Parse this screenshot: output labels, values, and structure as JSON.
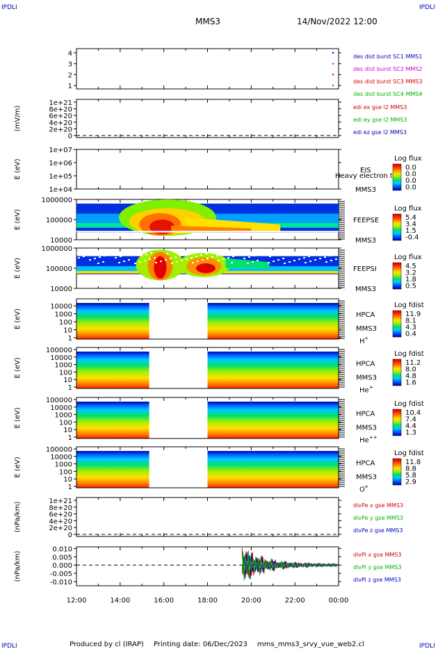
{
  "header": {
    "corner_label": "IPDLI",
    "spacecraft": "MMS3",
    "datetime": "14/Nov/2022 12:00"
  },
  "footer": {
    "produced_by": "Produced by cl (IRAP)",
    "printing_date": "Printing date: 06/Dec/2023",
    "script_name": "mms_mms3_srvy_vue_web2.cl"
  },
  "colors": {
    "blue": "#0000c0",
    "magenta": "#d000d0",
    "red": "#d00000",
    "green": "#00b000",
    "spectro_palette": [
      "#0000a0",
      "#0050ff",
      "#00c8ff",
      "#00e070",
      "#a0f000",
      "#ffe000",
      "#ff8000",
      "#ff2000",
      "#d80000"
    ]
  },
  "chart_data": [
    {
      "type": "scatter",
      "panel": "burst",
      "yticks": [
        "4",
        "3",
        "2",
        "1"
      ],
      "legend": [
        "des dist burst SC1 MMS1",
        "des dist burst SC2 MMS2",
        "des dist burst SC3 MMS3",
        "des dist burst SC4 MMS4"
      ],
      "legend_colors": [
        "blue",
        "magenta",
        "red",
        "green"
      ],
      "points": [
        {
          "x": "23:45",
          "y": 4
        },
        {
          "x": "23:45",
          "y": 3
        },
        {
          "x": "23:45",
          "y": 2
        },
        {
          "x": "23:45",
          "y": 1
        }
      ]
    },
    {
      "type": "line",
      "panel": "edi",
      "ylabel": "(mV/m)",
      "yticks": [
        "1e+21",
        "8e+20",
        "6e+20",
        "4e+20",
        "2e+20",
        "0"
      ],
      "legend": [
        "edi ex gse l2 MMS3",
        "edi ey gse l2 MMS3",
        "edi ez gse l2 MMS3"
      ],
      "legend_colors": [
        "red",
        "green",
        "blue"
      ]
    },
    {
      "type": "heatmap",
      "panel": "eis",
      "ylabel": "E (eV)",
      "yticks": [
        "1e+07",
        "1e+06",
        "1e+05",
        "1e+04"
      ],
      "instrument": [
        "EIS",
        "MMS3"
      ],
      "overlay_text": "Heavy electron to",
      "colorbar_title": "Log flux",
      "colorbar_ticks": [
        "0.0",
        "0.0",
        "0.0",
        "0.0"
      ]
    },
    {
      "type": "heatmap",
      "panel": "feepse",
      "ylabel": "E (eV)",
      "yticks": [
        "1000000",
        "100000",
        "10000"
      ],
      "instrument": [
        "FEEPSE",
        "MMS3"
      ],
      "colorbar_title": "Log flux",
      "colorbar_ticks": [
        "5.4",
        "3.4",
        "1.5",
        "-0.4"
      ]
    },
    {
      "type": "heatmap",
      "panel": "feepsi",
      "ylabel": "E (eV)",
      "yticks": [
        "1000000",
        "100000",
        "10000"
      ],
      "instrument": [
        "FEEPSI",
        "MMS3"
      ],
      "colorbar_title": "Log flux",
      "colorbar_ticks": [
        "4.5",
        "3.2",
        "1.8",
        "0.5"
      ]
    },
    {
      "type": "heatmap",
      "panel": "hpca_h",
      "ylabel": "E (eV)",
      "yticks": [
        "10000",
        "1000",
        "100",
        "10",
        "1"
      ],
      "instrument": [
        "HPCA",
        "MMS3"
      ],
      "species": "H",
      "species_charge": "+",
      "colorbar_title": "Log fdist",
      "colorbar_ticks": [
        "11.9",
        "8.1",
        "4.3",
        "0.4"
      ],
      "data_gap": [
        "15:20",
        "18:00"
      ]
    },
    {
      "type": "heatmap",
      "panel": "hpca_he",
      "ylabel": "E (eV)",
      "yticks": [
        "100000",
        "10000",
        "1000",
        "100",
        "10",
        "1"
      ],
      "instrument": [
        "HPCA",
        "MMS3"
      ],
      "species": "He",
      "species_charge": "+",
      "colorbar_title": "Log fdist",
      "colorbar_ticks": [
        "11.2",
        "8.0",
        "4.8",
        "1.6"
      ],
      "data_gap": [
        "15:20",
        "18:00"
      ]
    },
    {
      "type": "heatmap",
      "panel": "hpca_hepp",
      "ylabel": "E (eV)",
      "yticks": [
        "100000",
        "10000",
        "1000",
        "100",
        "10",
        "1"
      ],
      "instrument": [
        "HPCA",
        "MMS3"
      ],
      "species": "He",
      "species_charge": "++",
      "colorbar_title": "Log fdist",
      "colorbar_ticks": [
        "10.4",
        "7.4",
        "4.4",
        "1.3"
      ],
      "data_gap": [
        "15:20",
        "18:00"
      ]
    },
    {
      "type": "heatmap",
      "panel": "hpca_o",
      "ylabel": "E (eV)",
      "yticks": [
        "100000",
        "10000",
        "1000",
        "100",
        "10",
        "1"
      ],
      "instrument": [
        "HPCA",
        "MMS3"
      ],
      "species": "O",
      "species_charge": "+",
      "colorbar_title": "Log fdist",
      "colorbar_ticks": [
        "11.8",
        "8.8",
        "5.8",
        "2.9"
      ],
      "data_gap": [
        "15:20",
        "18:00"
      ]
    },
    {
      "type": "line",
      "panel": "divpe",
      "ylabel": "(nPa/km)",
      "yticks": [
        "1e+21",
        "8e+20",
        "6e+20",
        "4e+20",
        "2e+20",
        "0"
      ],
      "legend": [
        "divPe x gse MMS3",
        "divPe y gse MMS3",
        "divPe z gse MMS3"
      ],
      "legend_colors": [
        "red",
        "green",
        "blue"
      ]
    },
    {
      "type": "line",
      "panel": "divpi",
      "ylabel": "(nPa/km)",
      "yticks": [
        "0.010",
        "0.005",
        "0.000",
        "-0.005",
        "-0.010"
      ],
      "ylim": [
        -0.0125,
        0.011
      ],
      "legend": [
        "divPi x gse MMS3",
        "divPi y gse MMS3",
        "divPi z gse MMS3"
      ],
      "legend_colors": [
        "red",
        "green",
        "blue"
      ],
      "data_start": "19:35"
    }
  ],
  "xaxis": {
    "tick_labels": [
      "12:00",
      "14:00",
      "16:00",
      "18:00",
      "20:00",
      "22:00",
      "00:00"
    ]
  }
}
